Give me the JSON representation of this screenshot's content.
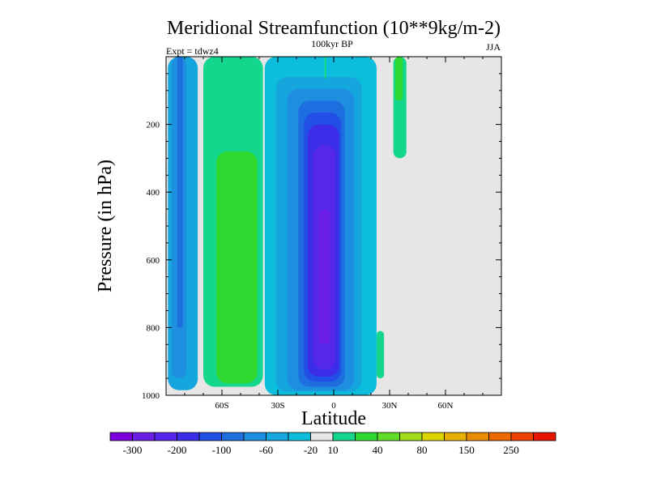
{
  "chart_data": {
    "type": "heatmap",
    "title": "Meridional Streamfunction (10**9kg/m-2)",
    "subtitle_left": "Expt = tdwz4",
    "subtitle_center": "100kyr BP",
    "subtitle_right": "JJA",
    "xlabel": "Latitude",
    "ylabel": "Pressure (in hPa)",
    "xlim": [
      -90,
      90
    ],
    "ylim": [
      1000,
      0
    ],
    "x_ticks": [
      {
        "value": -60,
        "label": "60S"
      },
      {
        "value": -30,
        "label": "30S"
      },
      {
        "value": 0,
        "label": "0"
      },
      {
        "value": 30,
        "label": "30N"
      },
      {
        "value": 60,
        "label": "60N"
      }
    ],
    "y_ticks": [
      {
        "value": 200,
        "label": "200"
      },
      {
        "value": 400,
        "label": "400"
      },
      {
        "value": 600,
        "label": "600"
      },
      {
        "value": 800,
        "label": "800"
      },
      {
        "value": 1000,
        "label": "1000"
      }
    ],
    "background_color": "#e6e6e6",
    "colorbar": {
      "colors": [
        "#7a00dc",
        "#6a1ee6",
        "#5527ea",
        "#3a2ee8",
        "#2250e6",
        "#1e6ee0",
        "#1e8ee0",
        "#14a6dc",
        "#0cbedc",
        "#e6e6e6",
        "#14d68c",
        "#2ed82e",
        "#62dc28",
        "#a0dc1e",
        "#dcd400",
        "#e8b000",
        "#ec8c00",
        "#ee6a00",
        "#ec4400",
        "#e81400"
      ],
      "labels": [
        {
          "after_index": 0,
          "text": "-300"
        },
        {
          "after_index": 2,
          "text": "-200"
        },
        {
          "after_index": 4,
          "text": "-100"
        },
        {
          "after_index": 6,
          "text": "-60"
        },
        {
          "after_index": 8,
          "text": "-20"
        },
        {
          "after_index": 9,
          "text": "10"
        },
        {
          "after_index": 11,
          "text": "40"
        },
        {
          "after_index": 13,
          "text": "80"
        },
        {
          "after_index": 15,
          "text": "150"
        },
        {
          "after_index": 17,
          "text": "250"
        }
      ]
    },
    "regions": [
      {
        "name": "southern-outer-cell",
        "level": -30,
        "color": "#14a6dc",
        "lat": [
          -89,
          -73
        ],
        "p": [
          0,
          985
        ]
      },
      {
        "name": "southern-outer-core",
        "level": -60,
        "color": "#1e8ee0",
        "lat": [
          -87,
          -79
        ],
        "p": [
          0,
          950
        ]
      },
      {
        "name": "southern-outer-center",
        "level": -100,
        "color": "#1e6ee0",
        "lat": [
          -84,
          -81
        ],
        "p": [
          0,
          800
        ]
      },
      {
        "name": "ferrel-cell-outer",
        "level": 10,
        "color": "#14d68c",
        "lat": [
          -70,
          -38
        ],
        "p": [
          0,
          975
        ]
      },
      {
        "name": "ferrel-cell-core",
        "level": 40,
        "color": "#2ed82e",
        "lat": [
          -63,
          -41
        ],
        "p": [
          280,
          965
        ]
      },
      {
        "name": "hadley-cell-outer",
        "level": -20,
        "color": "#0cbedc",
        "lat": [
          -37,
          23
        ],
        "p": [
          0,
          1000
        ]
      },
      {
        "name": "hadley-cell-1",
        "level": -40,
        "color": "#14a6dc",
        "lat": [
          -31,
          15
        ],
        "p": [
          60,
          990
        ]
      },
      {
        "name": "hadley-cell-2",
        "level": -60,
        "color": "#1e8ee0",
        "lat": [
          -25,
          11
        ],
        "p": [
          95,
          985
        ]
      },
      {
        "name": "hadley-cell-3",
        "level": -80,
        "color": "#1e6ee0",
        "lat": [
          -19,
          6
        ],
        "p": [
          130,
          975
        ]
      },
      {
        "name": "hadley-cell-4",
        "level": -100,
        "color": "#2250e6",
        "lat": [
          -16,
          4
        ],
        "p": [
          165,
          960
        ]
      },
      {
        "name": "hadley-cell-5",
        "level": -150,
        "color": "#3a2ee8",
        "lat": [
          -14,
          3
        ],
        "p": [
          200,
          945
        ]
      },
      {
        "name": "hadley-cell-core",
        "level": -200,
        "color": "#5527ea",
        "lat": [
          -11,
          1
        ],
        "p": [
          260,
          925
        ]
      },
      {
        "name": "hadley-cell-center",
        "level": -250,
        "color": "#6a1ee6",
        "lat": [
          -8,
          -2
        ],
        "p": [
          450,
          850
        ]
      },
      {
        "name": "northern-upper-filament",
        "level": 10,
        "color": "#14d68c",
        "lat": [
          32,
          39
        ],
        "p": [
          0,
          300
        ]
      },
      {
        "name": "northern-upper-filament-core",
        "level": 40,
        "color": "#2ed82e",
        "lat": [
          33,
          37
        ],
        "p": [
          0,
          130
        ]
      },
      {
        "name": "equatorial-upper-spot",
        "level": 10,
        "color": "#14d68c",
        "lat": [
          -5,
          -4
        ],
        "p": [
          0,
          65
        ]
      },
      {
        "name": "northern-lower-filament",
        "level": 10,
        "color": "#14d68c",
        "lat": [
          23,
          27
        ],
        "p": [
          810,
          950
        ]
      }
    ]
  }
}
